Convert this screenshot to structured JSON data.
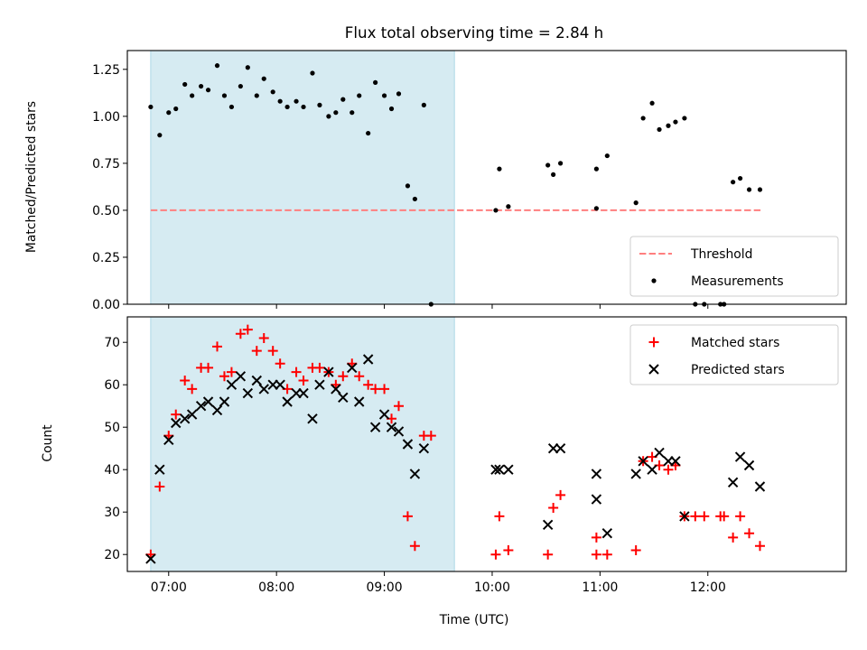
{
  "chart_data": [
    {
      "type": "scatter",
      "title": "Flux total observing time = 2.84 h",
      "ylabel": "Matched/Predicted stars",
      "xlabel": "",
      "xlim": [
        "06:37",
        "13:17"
      ],
      "ylim": [
        0,
        1.35
      ],
      "yticks": [
        "0.00",
        "0.25",
        "0.50",
        "0.75",
        "1.00",
        "1.25"
      ],
      "shaded_span": {
        "from": "06:50",
        "to": "09:39",
        "color": "#add8e6"
      },
      "threshold": {
        "name": "Threshold",
        "value": 0.5,
        "from": "06:50",
        "to": "12:30",
        "color": "#ff7f7f"
      },
      "legend": {
        "location": "lower right",
        "entries": [
          "Threshold",
          "Measurements"
        ]
      },
      "series": [
        {
          "name": "Measurements",
          "marker": "dot",
          "color": "#000000",
          "points": [
            [
              "06:50",
              1.05
            ],
            [
              "06:55",
              0.9
            ],
            [
              "06:60",
              1.02
            ],
            [
              "07:04",
              1.04
            ],
            [
              "07:09",
              1.17
            ],
            [
              "07:13",
              1.11
            ],
            [
              "07:18",
              1.16
            ],
            [
              "07:22",
              1.14
            ],
            [
              "07:27",
              1.27
            ],
            [
              "07:31",
              1.11
            ],
            [
              "07:35",
              1.05
            ],
            [
              "07:40",
              1.16
            ],
            [
              "07:44",
              1.26
            ],
            [
              "07:49",
              1.11
            ],
            [
              "07:53",
              1.2
            ],
            [
              "07:58",
              1.13
            ],
            [
              "08:02",
              1.08
            ],
            [
              "08:06",
              1.05
            ],
            [
              "08:11",
              1.08
            ],
            [
              "08:15",
              1.05
            ],
            [
              "08:20",
              1.23
            ],
            [
              "08:24",
              1.06
            ],
            [
              "08:29",
              1.0
            ],
            [
              "08:33",
              1.02
            ],
            [
              "08:37",
              1.09
            ],
            [
              "08:42",
              1.02
            ],
            [
              "08:46",
              1.11
            ],
            [
              "08:51",
              0.91
            ],
            [
              "08:55",
              1.18
            ],
            [
              "08:60",
              1.11
            ],
            [
              "09:04",
              1.04
            ],
            [
              "09:08",
              1.12
            ],
            [
              "09:13",
              0.63
            ],
            [
              "09:17",
              0.56
            ],
            [
              "09:22",
              1.06
            ],
            [
              "09:26",
              0.0
            ],
            [
              "10:02",
              0.5
            ],
            [
              "10:04",
              0.72
            ],
            [
              "10:09",
              0.52
            ],
            [
              "10:31",
              0.74
            ],
            [
              "10:34",
              0.69
            ],
            [
              "10:38",
              0.75
            ],
            [
              "10:58",
              0.51
            ],
            [
              "10:58",
              0.72
            ],
            [
              "11:04",
              0.79
            ],
            [
              "11:20",
              0.54
            ],
            [
              "11:24",
              0.99
            ],
            [
              "11:29",
              1.07
            ],
            [
              "11:33",
              0.93
            ],
            [
              "11:38",
              0.95
            ],
            [
              "11:42",
              0.97
            ],
            [
              "11:47",
              0.99
            ],
            [
              "11:53",
              0.0
            ],
            [
              "11:58",
              0.0
            ],
            [
              "12:07",
              0.0
            ],
            [
              "12:09",
              0.0
            ],
            [
              "12:14",
              0.65
            ],
            [
              "12:18",
              0.67
            ],
            [
              "12:23",
              0.61
            ],
            [
              "12:29",
              0.61
            ]
          ]
        }
      ]
    },
    {
      "type": "scatter",
      "title": "",
      "ylabel": "Count",
      "xlabel": "Time (UTC)",
      "xlim": [
        "06:37",
        "13:17"
      ],
      "ylim": [
        16,
        76
      ],
      "yticks": [
        "20",
        "30",
        "40",
        "50",
        "60",
        "70"
      ],
      "xticks": [
        "07:00",
        "08:00",
        "09:00",
        "10:00",
        "11:00",
        "12:00"
      ],
      "shaded_span": {
        "from": "06:50",
        "to": "09:39",
        "color": "#add8e6"
      },
      "legend": {
        "location": "upper right",
        "entries": [
          "Matched stars",
          "Predicted stars"
        ]
      },
      "series": [
        {
          "name": "Matched stars",
          "marker": "plus",
          "color": "#ff0000",
          "points": [
            [
              "06:50",
              20
            ],
            [
              "06:55",
              36
            ],
            [
              "06:60",
              48
            ],
            [
              "07:04",
              53
            ],
            [
              "07:09",
              61
            ],
            [
              "07:13",
              59
            ],
            [
              "07:18",
              64
            ],
            [
              "07:22",
              64
            ],
            [
              "07:27",
              69
            ],
            [
              "07:31",
              62
            ],
            [
              "07:35",
              63
            ],
            [
              "07:40",
              72
            ],
            [
              "07:44",
              73
            ],
            [
              "07:49",
              68
            ],
            [
              "07:53",
              71
            ],
            [
              "07:58",
              68
            ],
            [
              "08:02",
              65
            ],
            [
              "08:06",
              59
            ],
            [
              "08:11",
              63
            ],
            [
              "08:15",
              61
            ],
            [
              "08:20",
              64
            ],
            [
              "08:24",
              64
            ],
            [
              "08:29",
              63
            ],
            [
              "08:33",
              60
            ],
            [
              "08:37",
              62
            ],
            [
              "08:42",
              65
            ],
            [
              "08:46",
              62
            ],
            [
              "08:51",
              60
            ],
            [
              "08:55",
              59
            ],
            [
              "08:60",
              59
            ],
            [
              "09:04",
              52
            ],
            [
              "09:08",
              55
            ],
            [
              "09:13",
              29
            ],
            [
              "09:17",
              22
            ],
            [
              "09:22",
              48
            ],
            [
              "09:26",
              48
            ],
            [
              "10:02",
              20
            ],
            [
              "10:04",
              29
            ],
            [
              "10:09",
              21
            ],
            [
              "10:31",
              20
            ],
            [
              "10:34",
              31
            ],
            [
              "10:38",
              34
            ],
            [
              "10:58",
              20
            ],
            [
              "10:58",
              24
            ],
            [
              "11:04",
              20
            ],
            [
              "11:20",
              21
            ],
            [
              "11:24",
              42
            ],
            [
              "11:29",
              43
            ],
            [
              "11:33",
              41
            ],
            [
              "11:38",
              40
            ],
            [
              "11:42",
              41
            ],
            [
              "11:47",
              29
            ],
            [
              "11:53",
              29
            ],
            [
              "11:58",
              29
            ],
            [
              "12:07",
              29
            ],
            [
              "12:09",
              29
            ],
            [
              "12:14",
              24
            ],
            [
              "12:18",
              29
            ],
            [
              "12:23",
              25
            ],
            [
              "12:29",
              22
            ]
          ]
        },
        {
          "name": "Predicted stars",
          "marker": "x",
          "color": "#000000",
          "points": [
            [
              "06:50",
              19
            ],
            [
              "06:55",
              40
            ],
            [
              "06:60",
              47
            ],
            [
              "07:04",
              51
            ],
            [
              "07:09",
              52
            ],
            [
              "07:13",
              53
            ],
            [
              "07:18",
              55
            ],
            [
              "07:22",
              56
            ],
            [
              "07:27",
              54
            ],
            [
              "07:31",
              56
            ],
            [
              "07:35",
              60
            ],
            [
              "07:40",
              62
            ],
            [
              "07:44",
              58
            ],
            [
              "07:49",
              61
            ],
            [
              "07:53",
              59
            ],
            [
              "07:58",
              60
            ],
            [
              "08:02",
              60
            ],
            [
              "08:06",
              56
            ],
            [
              "08:11",
              58
            ],
            [
              "08:15",
              58
            ],
            [
              "08:20",
              52
            ],
            [
              "08:24",
              60
            ],
            [
              "08:29",
              63
            ],
            [
              "08:33",
              59
            ],
            [
              "08:37",
              57
            ],
            [
              "08:42",
              64
            ],
            [
              "08:46",
              56
            ],
            [
              "08:51",
              66
            ],
            [
              "08:55",
              50
            ],
            [
              "08:60",
              53
            ],
            [
              "09:04",
              50
            ],
            [
              "09:08",
              49
            ],
            [
              "09:13",
              46
            ],
            [
              "09:17",
              39
            ],
            [
              "09:22",
              45
            ],
            [
              "10:02",
              40
            ],
            [
              "10:04",
              40
            ],
            [
              "10:09",
              40
            ],
            [
              "10:31",
              27
            ],
            [
              "10:34",
              45
            ],
            [
              "10:38",
              45
            ],
            [
              "10:58",
              39
            ],
            [
              "10:58",
              33
            ],
            [
              "11:04",
              25
            ],
            [
              "11:20",
              39
            ],
            [
              "11:24",
              42
            ],
            [
              "11:29",
              40
            ],
            [
              "11:33",
              44
            ],
            [
              "11:38",
              42
            ],
            [
              "11:42",
              42
            ],
            [
              "11:47",
              29
            ],
            [
              "12:14",
              37
            ],
            [
              "12:18",
              43
            ],
            [
              "12:23",
              41
            ],
            [
              "12:29",
              36
            ]
          ]
        }
      ]
    }
  ]
}
